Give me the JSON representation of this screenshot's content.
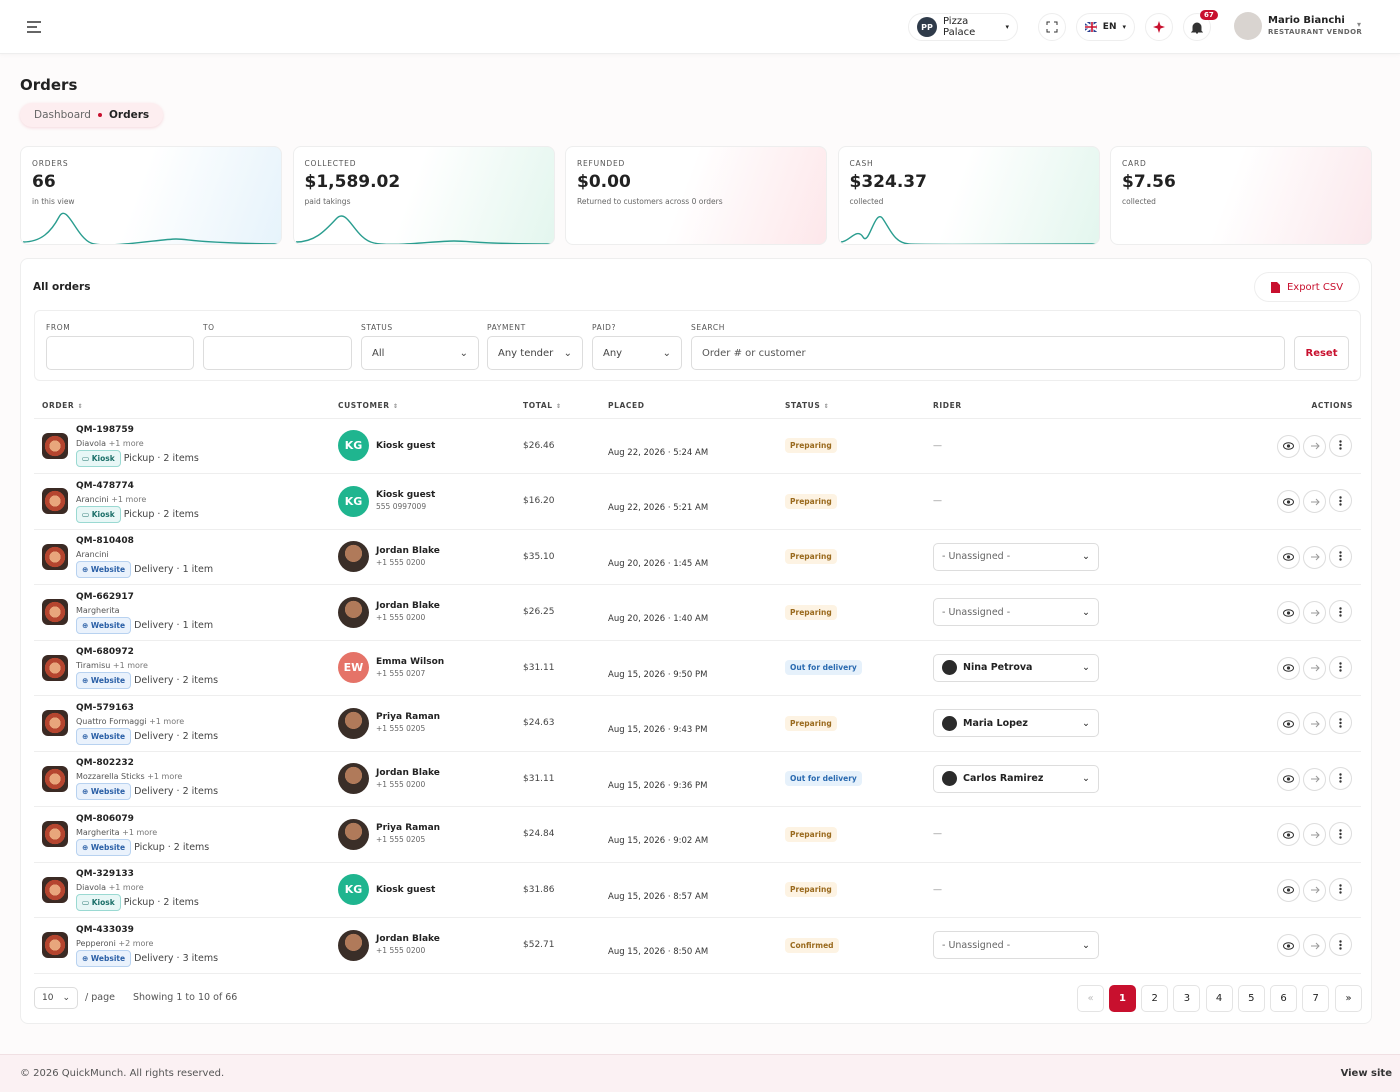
{
  "header": {
    "brand_initials": "PP",
    "brand": "Pizza Palace",
    "language": "EN",
    "notifications": "67",
    "user_name": "Mario Bianchi",
    "user_role": "RESTAURANT VENDOR"
  },
  "page": {
    "title": "Orders",
    "breadcrumb": [
      "Dashboard",
      "Orders"
    ]
  },
  "stats": [
    {
      "label": "ORDERS",
      "value": "66",
      "caption": "in this view"
    },
    {
      "label": "COLLECTED",
      "value": "$1,589.02",
      "caption": "paid takings"
    },
    {
      "label": "REFUNDED",
      "value": "$0.00",
      "caption": "Returned to customers across 0 orders"
    },
    {
      "label": "CASH",
      "value": "$324.37",
      "caption": "collected"
    },
    {
      "label": "CARD",
      "value": "$7.56",
      "caption": "collected"
    }
  ],
  "panel": {
    "title": "All orders",
    "export": "Export CSV",
    "filters": {
      "from": "FROM",
      "to": "TO",
      "status_label": "STATUS",
      "status_value": "All",
      "payment_label": "PAYMENT",
      "payment_value": "Any tender",
      "paid_label": "PAID?",
      "paid_value": "Any",
      "search_label": "SEARCH",
      "search_placeholder": "Order # or customer",
      "reset": "Reset"
    }
  },
  "table": {
    "columns": [
      "ORDER",
      "CUSTOMER",
      "TOTAL",
      "PLACED",
      "STATUS",
      "RIDER",
      "ACTIONS"
    ],
    "rows": [
      {
        "id": "QM-198759",
        "item": "Diavola",
        "more": "+1 more",
        "channel": "Kiosk",
        "fulfillment": "Pickup · 2 items",
        "initials": "KG",
        "customer": "Kiosk guest",
        "total": "$26.46",
        "placed": "Aug 22, 2026 · 5:24 AM",
        "status": "Preparing",
        "rider": "—",
        "rider_control": "none"
      },
      {
        "id": "QM-478774",
        "item": "Arancini",
        "more": "+1 more",
        "channel": "Kiosk",
        "fulfillment": "Pickup · 2 items",
        "initials": "KG",
        "customer": "Kiosk guest",
        "phone": "555 0997009",
        "total": "$16.20",
        "placed": "Aug 22, 2026 · 5:21 AM",
        "status": "Preparing",
        "rider": "—",
        "rider_control": "none"
      },
      {
        "id": "QM-810408",
        "item": "Arancini",
        "channel": "Website",
        "fulfillment": "Delivery · 1 item",
        "customer": "Jordan Blake",
        "phone": "+1 555 0200",
        "total": "$35.10",
        "placed": "Aug 20, 2026 · 1:45 AM",
        "status": "Preparing",
        "rider": "- Unassigned -",
        "rider_control": "select"
      },
      {
        "id": "QM-662917",
        "item": "Margherita",
        "channel": "Website",
        "fulfillment": "Delivery · 1 item",
        "customer": "Jordan Blake",
        "phone": "+1 555 0200",
        "total": "$26.25",
        "placed": "Aug 20, 2026 · 1:40 AM",
        "status": "Preparing",
        "rider": "- Unassigned -",
        "rider_control": "select"
      },
      {
        "id": "QM-680972",
        "item": "Tiramisu",
        "more": "+1 more",
        "channel": "Website",
        "fulfillment": "Delivery · 2 items",
        "initials": "EW",
        "customer": "Emma Wilson",
        "phone": "+1 555 0207",
        "total": "$31.11",
        "placed": "Aug 15, 2026 · 9:50 PM",
        "status": "Out for delivery",
        "rider": "Nina Petrova",
        "rider_control": "assigned"
      },
      {
        "id": "QM-579163",
        "item": "Quattro Formaggi",
        "more": "+1 more",
        "channel": "Website",
        "fulfillment": "Delivery · 2 items",
        "customer": "Priya Raman",
        "phone": "+1 555 0205",
        "total": "$24.63",
        "placed": "Aug 15, 2026 · 9:43 PM",
        "status": "Preparing",
        "rider": "Maria Lopez",
        "rider_control": "assigned"
      },
      {
        "id": "QM-802232",
        "item": "Mozzarella Sticks",
        "more": "+1 more",
        "channel": "Website",
        "fulfillment": "Delivery · 2 items",
        "customer": "Jordan Blake",
        "phone": "+1 555 0200",
        "total": "$31.11",
        "placed": "Aug 15, 2026 · 9:36 PM",
        "status": "Out for delivery",
        "rider": "Carlos Ramirez",
        "rider_control": "assigned"
      },
      {
        "id": "QM-806079",
        "item": "Margherita",
        "more": "+1 more",
        "channel": "Website",
        "fulfillment": "Pickup · 2 items",
        "customer": "Priya Raman",
        "phone": "+1 555 0205",
        "total": "$24.84",
        "placed": "Aug 15, 2026 · 9:02 AM",
        "status": "Preparing",
        "rider": "—",
        "rider_control": "none"
      },
      {
        "id": "QM-329133",
        "item": "Diavola",
        "more": "+1 more",
        "channel": "Kiosk",
        "fulfillment": "Pickup · 2 items",
        "initials": "KG",
        "customer": "Kiosk guest",
        "total": "$31.86",
        "placed": "Aug 15, 2026 · 8:57 AM",
        "status": "Preparing",
        "rider": "—",
        "rider_control": "none"
      },
      {
        "id": "QM-433039",
        "item": "Pepperoni",
        "more": "+2 more",
        "channel": "Website",
        "fulfillment": "Delivery · 3 items",
        "customer": "Jordan Blake",
        "phone": "+1 555 0200",
        "total": "$52.71",
        "placed": "Aug 15, 2026 · 8:50 AM",
        "status": "Confirmed",
        "rider": "- Unassigned -",
        "rider_control": "select"
      }
    ]
  },
  "pagination": {
    "per_page": "10",
    "per_page_suffix": "/ page",
    "summary": "Showing 1 to 10 of 66",
    "prev": "«",
    "pages": [
      "1",
      "2",
      "3",
      "4",
      "5",
      "6",
      "7"
    ],
    "current": "1",
    "next": "»"
  },
  "footer": {
    "copyright": "© 2026 QuickMunch. All rights reserved.",
    "link": "View site"
  }
}
